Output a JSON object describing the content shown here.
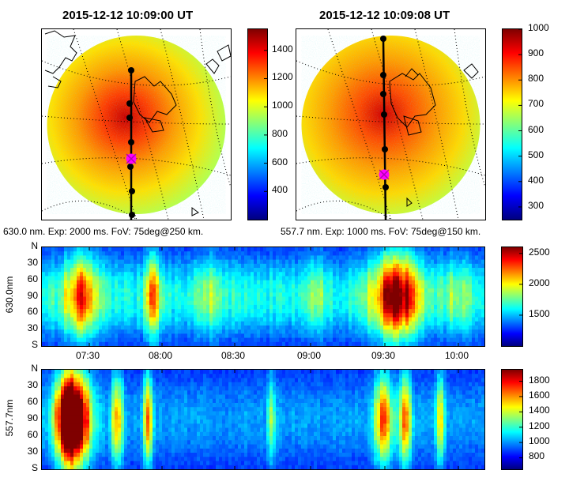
{
  "colors": {
    "jet": [
      "#00007f",
      "#0000ff",
      "#007fff",
      "#00ffff",
      "#7fff7f",
      "#ffff00",
      "#ff7f00",
      "#ff0000",
      "#7f0000"
    ]
  },
  "chart_data": [
    {
      "type": "heatmap",
      "title": "2015-12-12 10:09:00 UT",
      "caption": "630.0 nm. Exp: 2000 ms. FoV: 75deg@250 km.",
      "colorbar": {
        "min": 200,
        "max": 1550,
        "ticks": [
          "1400",
          "1200",
          "1000",
          "800",
          "600",
          "400"
        ]
      },
      "markers": {
        "count": 7,
        "highlight": "magenta-x"
      }
    },
    {
      "type": "heatmap",
      "title": "2015-12-12 10:09:08 UT",
      "caption": "557.7 nm. Exp: 1000 ms. FoV: 75deg@150 km.",
      "colorbar": {
        "min": 250,
        "max": 1000,
        "ticks": [
          "1000",
          "900",
          "800",
          "700",
          "600",
          "500",
          "400",
          "300"
        ]
      },
      "markers": {
        "count": 7,
        "highlight": "magenta-x"
      }
    },
    {
      "type": "heatmap",
      "ylabel": "630.0nm",
      "yticks": [
        "N",
        "30",
        "60",
        "90",
        "60",
        "30",
        "S"
      ],
      "xticks": [
        "07:30",
        "08:00",
        "08:30",
        "09:00",
        "09:30",
        "10:00"
      ],
      "colorbar": {
        "min": 1000,
        "max": 2600,
        "ticks": [
          "2500",
          "2000",
          "1500"
        ]
      }
    },
    {
      "type": "heatmap",
      "ylabel": "557.7nm",
      "yticks": [
        "N",
        "30",
        "60",
        "90",
        "60",
        "30",
        "S"
      ],
      "colorbar": {
        "min": 650,
        "max": 1950,
        "ticks": [
          "1800",
          "1600",
          "1400",
          "1200",
          "1000",
          "800"
        ]
      }
    }
  ]
}
